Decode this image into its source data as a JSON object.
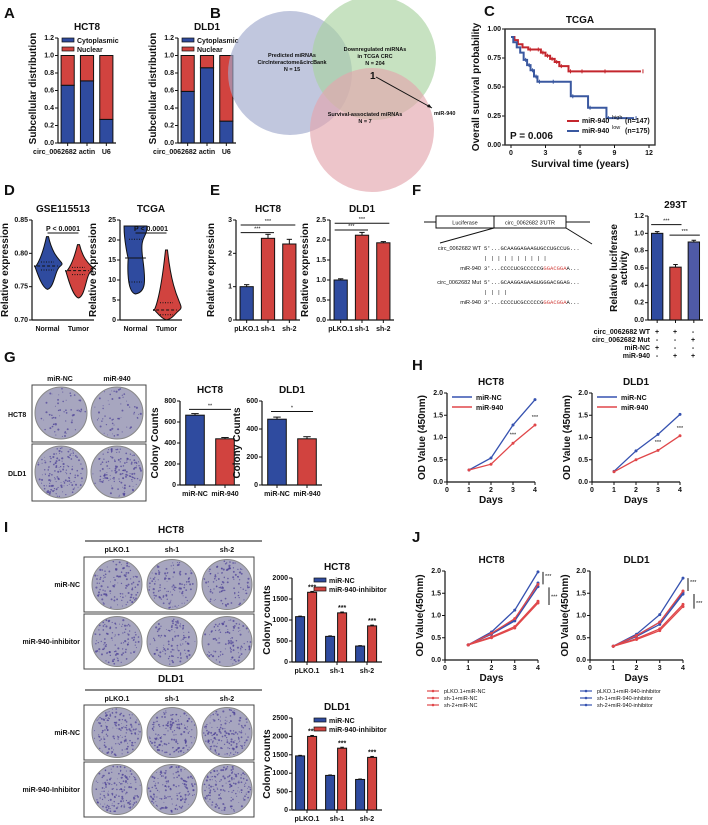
{
  "panel_labels": [
    "A",
    "B",
    "C",
    "D",
    "E",
    "F",
    "G",
    "H",
    "I",
    "J"
  ],
  "colors": {
    "blue": "#2f4b9f",
    "red": "#d1433f",
    "slate": "#4f5aa6",
    "plate": "#a7a6bf",
    "plate_dot": "#4a3f95"
  },
  "venn": {
    "sets": [
      {
        "label1": "Predicted miRNAs",
        "label2": "CircInteractome&circBank",
        "n": "N = 15",
        "color": "#9fa9cc"
      },
      {
        "label1": "Downregulated miRNAs",
        "label2": "in TCGA CRC",
        "n": "N = 204",
        "color": "#a9d3a0"
      },
      {
        "label1": "Survival-associated miRNAs",
        "label2": "",
        "n": "N = 7",
        "color": "#e4a6ad"
      }
    ],
    "intersection": "1",
    "arrow_label": "miR-940"
  },
  "construct": {
    "box1": "Luciferase",
    "box2": "circ_0062682 3'UTR",
    "rows": [
      {
        "label": "circ_0062682 WT",
        "seq": "5'...GCAAGGAGAAGUGCCUGCCUG...",
        "red": ""
      },
      {
        "label": "",
        "seq": "          |     |     |      | | | | | | |",
        "red": ""
      },
      {
        "label": "miR-940",
        "seq": "3'...CCCCUCGCCCCCG",
        "red": "GGACGGA",
        "tail": "A..."
      },
      {
        "label": "circ_0062682 Mut",
        "seq": "5'...GCAAGGAGAAGUGGGACGGAG...",
        "red": ""
      },
      {
        "label": "",
        "seq": "          |     |     |     |",
        "red": ""
      },
      {
        "label": "miR-940",
        "seq": "3'...CCCCUCGCCCCCG",
        "red": "GGACGGA",
        "tail": "A..."
      }
    ]
  },
  "F_table": [
    {
      "label": "circ_0062682 WT",
      "values": [
        "+",
        "+",
        "-"
      ]
    },
    {
      "label": "circ_0062682 Mut",
      "values": [
        "-",
        "-",
        "+"
      ]
    },
    {
      "label": "miR-NC",
      "values": [
        "+",
        "-",
        "-"
      ]
    },
    {
      "label": "miR-940",
      "values": [
        "-",
        "+",
        "+"
      ]
    }
  ],
  "G_plates": {
    "cols": [
      "miR-NC",
      "miR-940"
    ],
    "rows": [
      "HCT8",
      "DLD1"
    ]
  },
  "I_plates": [
    {
      "title": "HCT8",
      "cols": [
        "pLKO.1",
        "sh-1",
        "sh-2"
      ],
      "rows": [
        "miR-NC",
        "miR-940-inhibitor"
      ]
    },
    {
      "title": "DLD1",
      "cols": [
        "pLKO.1",
        "sh-1",
        "sh-2"
      ],
      "rows": [
        "miR-NC",
        "miR-940-Inhibitor"
      ]
    }
  ],
  "chart_data": [
    {
      "id": "A1",
      "type": "bar",
      "stacked": true,
      "title": "HCT8",
      "categories": [
        "circ_0062682",
        "actin",
        "U6"
      ],
      "series": [
        {
          "name": "Cytoplasmic",
          "color": "#2f4b9f",
          "values": [
            0.66,
            0.71,
            0.27
          ]
        },
        {
          "name": "Nuclear",
          "color": "#d1433f",
          "values": [
            0.34,
            0.29,
            0.73
          ]
        }
      ],
      "ylabel": "Subcellular distribution",
      "ylim": [
        0,
        1.2
      ],
      "yticks": [
        "0.0",
        "0.2",
        "0.4",
        "0.6",
        "0.8",
        "1.0",
        "1.2"
      ],
      "legend": "top"
    },
    {
      "id": "A2",
      "type": "bar",
      "stacked": true,
      "title": "DLD1",
      "categories": [
        "circ_0062682",
        "actin",
        "U6"
      ],
      "series": [
        {
          "name": "Cytoplasmic",
          "color": "#2f4b9f",
          "values": [
            0.59,
            0.86,
            0.25
          ]
        },
        {
          "name": "Nuclear",
          "color": "#d1433f",
          "values": [
            0.41,
            0.14,
            0.75
          ]
        }
      ],
      "ylabel": "Subcellular distribution",
      "ylim": [
        0,
        1.2
      ],
      "yticks": [
        "0.0",
        "0.2",
        "0.4",
        "0.6",
        "0.8",
        "1.0",
        "1.2"
      ],
      "legend": "top"
    },
    {
      "id": "C",
      "type": "line",
      "subtype": "kaplan-meier",
      "title": "TCGA",
      "xlabel": "Survival time (years)",
      "ylabel": "Overall survival probability",
      "xlim": [
        0,
        12
      ],
      "ylim": [
        0,
        1
      ],
      "xticks": [
        "0",
        "3",
        "6",
        "9",
        "12"
      ],
      "yticks": [
        "0.00",
        "0.25",
        "0.50",
        "0.75",
        "1.00"
      ],
      "annotation": "P = 0.006",
      "legend": "bottom-right",
      "series": [
        {
          "name": "miR-940",
          "sup": "high",
          "n": "(n=147)",
          "color": "#c4262d",
          "x": [
            0,
            0.3,
            0.6,
            1,
            1.5,
            2.2,
            2.6,
            3,
            3.4,
            3.8,
            4.2,
            5,
            6,
            8,
            11.3
          ],
          "y": [
            1,
            0.97,
            0.93,
            0.9,
            0.88,
            0.88,
            0.85,
            0.82,
            0.79,
            0.76,
            0.72,
            0.67,
            0.67,
            0.67,
            0.67
          ]
        },
        {
          "name": "miR-940",
          "sup": "low",
          "n": "(n=175)",
          "color": "#3a58a0",
          "x": [
            0,
            0.2,
            0.5,
            0.8,
            1.1,
            1.4,
            1.7,
            2,
            2.3,
            3.5,
            5.2,
            6.7,
            8.3,
            10.7
          ],
          "y": [
            1,
            0.95,
            0.9,
            0.85,
            0.78,
            0.73,
            0.68,
            0.62,
            0.57,
            0.57,
            0.43,
            0.32,
            0.22,
            0.22
          ]
        }
      ]
    },
    {
      "id": "D1",
      "type": "violin",
      "title": "GSE115513",
      "categories": [
        "Normal",
        "Tumor"
      ],
      "ylabel": "Relative expression",
      "ylim": [
        0.7,
        0.85
      ],
      "yticks": [
        "0.70",
        "0.75",
        "0.80",
        "0.85"
      ],
      "annotation": "P < 0.0001",
      "series": [
        {
          "color": "#2f4b9f",
          "min": 0.746,
          "q1": 0.775,
          "median": 0.781,
          "q3": 0.787,
          "max": 0.825
        },
        {
          "color": "#d1433f",
          "min": 0.733,
          "q1": 0.768,
          "median": 0.774,
          "q3": 0.779,
          "max": 0.813
        }
      ]
    },
    {
      "id": "D2",
      "type": "violin",
      "title": "TCGA",
      "categories": [
        "Normal",
        "Tumor"
      ],
      "ylabel": "Relative expression",
      "ylim": [
        0,
        25
      ],
      "yticks": [
        "0",
        "5",
        "10",
        "15",
        "20",
        "25"
      ],
      "annotation": "P < 0.0001",
      "series": [
        {
          "color": "#2f4b9f",
          "min": 6.5,
          "q1": 9.5,
          "median": 15.5,
          "q3": 20.2,
          "max": 23.5,
          "flat": true
        },
        {
          "color": "#d1433f",
          "min": 0,
          "q1": 1.3,
          "median": 2.5,
          "q3": 4.3,
          "max": 17.5
        }
      ]
    },
    {
      "id": "E1",
      "type": "bar",
      "title": "HCT8",
      "categories": [
        "pLKO.1",
        "sh-1",
        "sh-2"
      ],
      "ylabel": "Relative expression",
      "series": [
        {
          "values": [
            1.0,
            2.45,
            2.28
          ],
          "errors": [
            0.06,
            0.12,
            0.14
          ],
          "colors": [
            "#2f4b9f",
            "#d1433f",
            "#d1433f"
          ]
        }
      ],
      "ylim": [
        0,
        3
      ],
      "yticks": [
        "0",
        "1",
        "2",
        "3"
      ],
      "sig": [
        {
          "from": 0,
          "to": 1,
          "label": "***",
          "level": 2.62
        },
        {
          "from": 0,
          "to": 2,
          "label": "***",
          "level": 2.85
        }
      ]
    },
    {
      "id": "E2",
      "type": "bar",
      "title": "DLD1",
      "categories": [
        "pLKO.1",
        "sh-1",
        "sh-2"
      ],
      "ylabel": "Relative expression",
      "series": [
        {
          "values": [
            1.0,
            2.12,
            1.93
          ],
          "errors": [
            0.03,
            0.07,
            0.03
          ],
          "colors": [
            "#2f4b9f",
            "#d1433f",
            "#d1433f"
          ]
        }
      ],
      "ylim": [
        0,
        2.5
      ],
      "yticks": [
        "0.0",
        "0.5",
        "1.0",
        "1.5",
        "2.0",
        "2.5"
      ],
      "sig": [
        {
          "from": 0,
          "to": 1,
          "label": "***",
          "level": 2.25
        },
        {
          "from": 0,
          "to": 2,
          "label": "***",
          "level": 2.42
        }
      ]
    },
    {
      "id": "F",
      "type": "bar",
      "title": "293T",
      "categories": [
        "1",
        "2",
        "3"
      ],
      "ylabel": "Relative luciferase activity",
      "series": [
        {
          "values": [
            1.0,
            0.61,
            0.9
          ],
          "errors": [
            0.02,
            0.03,
            0.02
          ],
          "colors": [
            "#2f4b9f",
            "#d1433f",
            "#4f5aa6"
          ]
        }
      ],
      "ylim": [
        0,
        1.2
      ],
      "yticks": [
        "0.0",
        "0.2",
        "0.4",
        "0.6",
        "0.8",
        "1.0",
        "1.2"
      ],
      "sig": [
        {
          "from": 0,
          "to": 1,
          "label": "***",
          "level": 1.1
        },
        {
          "from": 1,
          "to": 2,
          "label": "***",
          "level": 0.98
        }
      ],
      "hide_xlabels": true
    },
    {
      "id": "G1",
      "type": "bar",
      "title": "HCT8",
      "categories": [
        "miR-NC",
        "miR-940"
      ],
      "ylabel": "Colony Counts",
      "series": [
        {
          "values": [
            665,
            440
          ],
          "errors": [
            15,
            12
          ],
          "colors": [
            "#2f4b9f",
            "#d1433f"
          ]
        }
      ],
      "ylim": [
        0,
        800
      ],
      "yticks": [
        "0",
        "200",
        "400",
        "600",
        "800"
      ],
      "sig": [
        {
          "from": 0,
          "to": 1,
          "label": "**",
          "level": 720
        }
      ]
    },
    {
      "id": "G2",
      "type": "bar",
      "title": "DLD1",
      "categories": [
        "miR-NC",
        "miR-940"
      ],
      "ylabel": "Colony Counts",
      "series": [
        {
          "values": [
            470,
            330
          ],
          "errors": [
            15,
            15
          ],
          "colors": [
            "#2f4b9f",
            "#d1433f"
          ]
        }
      ],
      "ylim": [
        0,
        600
      ],
      "yticks": [
        "0",
        "200",
        "400",
        "600"
      ],
      "sig": [
        {
          "from": 0,
          "to": 1,
          "label": "*",
          "level": 525
        }
      ]
    },
    {
      "id": "H1",
      "type": "line",
      "title": "HCT8",
      "xlabel": "Days",
      "ylabel": "OD Value (450nm)",
      "xlim": [
        0,
        4
      ],
      "ylim": [
        0,
        2
      ],
      "xticks": [
        "0",
        "1",
        "2",
        "3",
        "4"
      ],
      "yticks": [
        "0.0",
        "0.5",
        "1.0",
        "1.5",
        "2.0"
      ],
      "legend": "top-left",
      "x": [
        1,
        2,
        3,
        4
      ],
      "stars": [
        {
          "x": 3,
          "y": 1.02,
          "label": "***"
        },
        {
          "x": 4,
          "y": 1.42,
          "label": "***"
        }
      ],
      "series": [
        {
          "name": "miR-NC",
          "color": "#3652b0",
          "y": [
            0.27,
            0.54,
            1.28,
            1.85
          ]
        },
        {
          "name": "miR-940",
          "color": "#e0474a",
          "y": [
            0.27,
            0.4,
            0.87,
            1.28
          ]
        }
      ]
    },
    {
      "id": "H2",
      "type": "line",
      "title": "DLD1",
      "xlabel": "Days",
      "ylabel": "OD Value (450nm)",
      "xlim": [
        0,
        4
      ],
      "ylim": [
        0,
        2
      ],
      "xticks": [
        "0",
        "1",
        "2",
        "3",
        "4"
      ],
      "yticks": [
        "0.0",
        "0.5",
        "1.0",
        "1.5",
        "2.0"
      ],
      "legend": "top-left",
      "x": [
        1,
        2,
        3,
        4
      ],
      "stars": [
        {
          "x": 3,
          "y": 0.85,
          "label": "***"
        },
        {
          "x": 4,
          "y": 1.17,
          "label": "***"
        }
      ],
      "series": [
        {
          "name": "miR-NC",
          "color": "#3652b0",
          "y": [
            0.24,
            0.7,
            1.07,
            1.52
          ]
        },
        {
          "name": "miR-940",
          "color": "#e0474a",
          "y": [
            0.23,
            0.5,
            0.71,
            1.04
          ]
        }
      ]
    },
    {
      "id": "I1",
      "type": "bar",
      "title": "HCT8",
      "categories": [
        "pLKO.1",
        "sh-1",
        "sh-2"
      ],
      "ylabel": "Colony counts",
      "legend": "top",
      "series": [
        {
          "name": "miR-NC",
          "color": "#2f4b9f",
          "values": [
            1080,
            610,
            380
          ],
          "errors": [
            12,
            12,
            10
          ]
        },
        {
          "name": "miR-940-inhibitor",
          "color": "#d1433f",
          "values": [
            1660,
            1170,
            860
          ],
          "errors": [
            20,
            20,
            18
          ]
        }
      ],
      "ylim": [
        0,
        2000
      ],
      "yticks": [
        "0",
        "500",
        "1000",
        "1500",
        "2000"
      ],
      "star_series": 1,
      "star_label": "***"
    },
    {
      "id": "I2",
      "type": "bar",
      "title": "DLD1",
      "categories": [
        "pLKO.1",
        "sh-1",
        "sh-2"
      ],
      "ylabel": "Colony counts",
      "legend": "top",
      "series": [
        {
          "name": "miR-NC",
          "color": "#2f4b9f",
          "values": [
            1470,
            940,
            830
          ],
          "errors": [
            15,
            12,
            12
          ]
        },
        {
          "name": "miR-940-inhibitor",
          "color": "#d1433f",
          "values": [
            2000,
            1680,
            1430
          ],
          "errors": [
            25,
            25,
            25
          ]
        }
      ],
      "ylim": [
        0,
        2500
      ],
      "yticks": [
        "0",
        "500",
        "1000",
        "1500",
        "2000",
        "2500"
      ],
      "star_series": 1,
      "star_label": "***"
    },
    {
      "id": "J1",
      "type": "line",
      "title": "HCT8",
      "xlabel": "Days",
      "ylabel": "OD Value(450nm)",
      "xlim": [
        0,
        4
      ],
      "ylim": [
        0,
        2
      ],
      "xticks": [
        "0",
        "1",
        "2",
        "3",
        "4"
      ],
      "yticks": [
        "0.0",
        "0.5",
        "1.0",
        "1.5",
        "2.0"
      ],
      "x": [
        1,
        2,
        3,
        4
      ],
      "brackets": [
        "***",
        "***"
      ],
      "legend_entries": [
        "pLKO.1+miR-NC",
        "sh-1+miR-NC",
        "sh-2+miR-NC"
      ],
      "legend_color": "#e0474a",
      "series": [
        {
          "name": "pLKO.1+miR-940-inhibitor",
          "color": "#3652b0",
          "y": [
            0.34,
            0.63,
            1.12,
            1.98
          ]
        },
        {
          "name": "sh-1+miR-940-inhibitor",
          "color": "#3652b0",
          "y": [
            0.34,
            0.6,
            0.9,
            1.73
          ]
        },
        {
          "name": "sh-2+miR-940-inhibitor",
          "color": "#3652b0",
          "y": [
            0.34,
            0.58,
            0.88,
            1.65
          ]
        },
        {
          "name": "pLKO.1+miR-NC",
          "color": "#e0474a",
          "y": [
            0.34,
            0.6,
            0.93,
            1.7
          ]
        },
        {
          "name": "sh-1+miR-NC",
          "color": "#e0474a",
          "y": [
            0.34,
            0.52,
            0.75,
            1.32
          ]
        },
        {
          "name": "sh-2+miR-NC",
          "color": "#e0474a",
          "y": [
            0.34,
            0.5,
            0.72,
            1.28
          ]
        }
      ]
    },
    {
      "id": "J2",
      "type": "line",
      "title": "DLD1",
      "xlabel": "Days",
      "ylabel": "OD Value(450nm)",
      "xlim": [
        0,
        4
      ],
      "ylim": [
        0,
        2
      ],
      "xticks": [
        "0",
        "1",
        "2",
        "3",
        "4"
      ],
      "yticks": [
        "0.0",
        "0.5",
        "1.0",
        "1.5",
        "2.0"
      ],
      "x": [
        1,
        2,
        3,
        4
      ],
      "brackets": [
        "***",
        "***"
      ],
      "legend_entries": [
        "pLKO.1+miR-940-inhibitor",
        "sh-1+miR-940-inhibitor",
        "sh-2+miR-940-inhibitor"
      ],
      "legend_color": "#3652b0",
      "series": [
        {
          "name": "pLKO.1+miR-940-inhibitor",
          "color": "#3652b0",
          "y": [
            0.31,
            0.58,
            1.02,
            1.84
          ]
        },
        {
          "name": "sh-1+miR-940-inhibitor",
          "color": "#3652b0",
          "y": [
            0.31,
            0.55,
            0.85,
            1.52
          ]
        },
        {
          "name": "sh-2+miR-940-inhibitor",
          "color": "#3652b0",
          "y": [
            0.31,
            0.53,
            0.8,
            1.48
          ]
        },
        {
          "name": "pLKO.1+miR-NC",
          "color": "#e0474a",
          "y": [
            0.31,
            0.55,
            0.85,
            1.55
          ]
        },
        {
          "name": "sh-1+miR-NC",
          "color": "#e0474a",
          "y": [
            0.31,
            0.48,
            0.7,
            1.25
          ]
        },
        {
          "name": "sh-2+miR-NC",
          "color": "#e0474a",
          "y": [
            0.31,
            0.46,
            0.66,
            1.2
          ]
        }
      ]
    }
  ]
}
